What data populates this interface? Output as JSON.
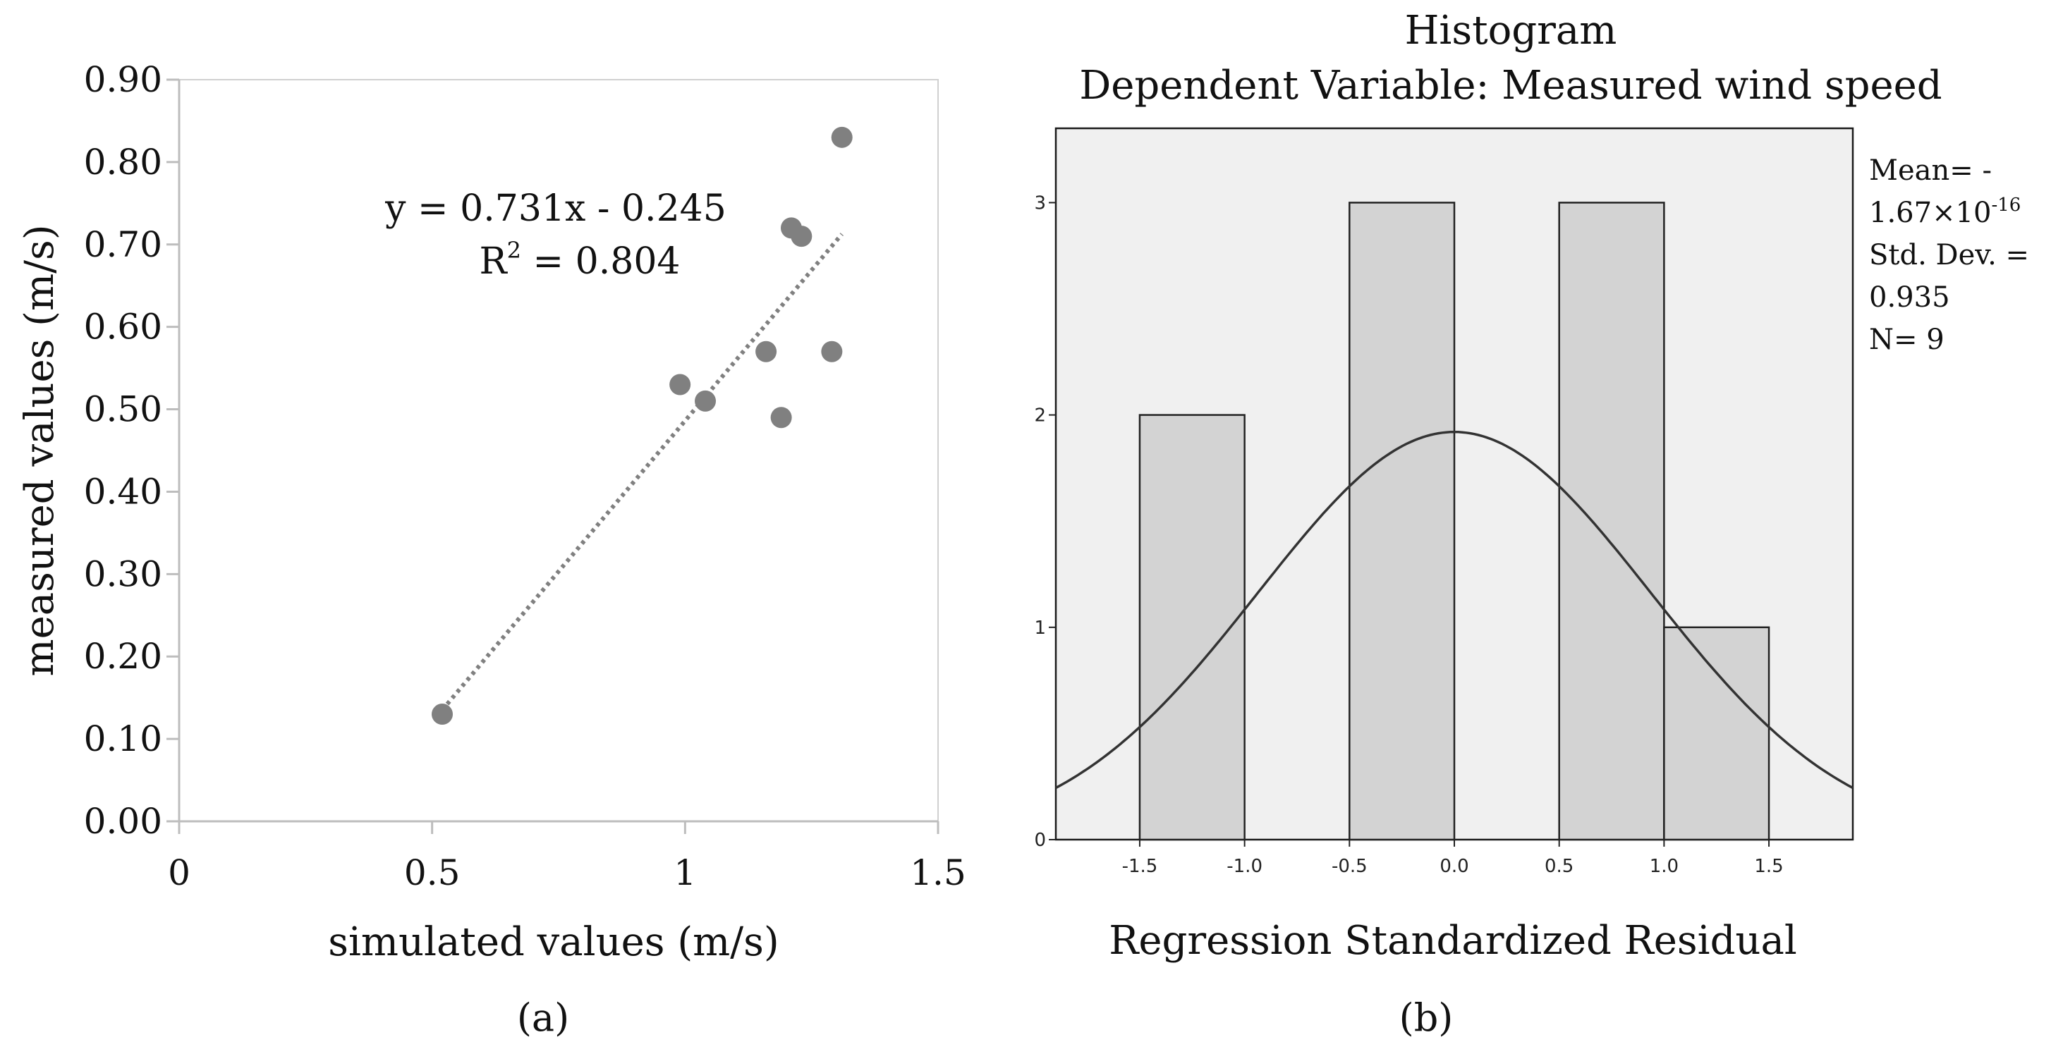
{
  "chart_data": [
    {
      "type": "scatter",
      "panel_label": "(a)",
      "xlabel": "simulated values (m/s)",
      "ylabel": "measured values (m/s)",
      "xlim": [
        0,
        1.5
      ],
      "ylim": [
        0,
        0.9
      ],
      "x_ticks": [
        0,
        0.5,
        1,
        1.5
      ],
      "x_tick_labels": [
        "0",
        "0.5",
        "1",
        "1.5"
      ],
      "y_ticks": [
        0,
        0.1,
        0.2,
        0.3,
        0.4,
        0.5,
        0.6,
        0.7,
        0.8,
        0.9
      ],
      "y_tick_labels": [
        "0.00",
        "0.10",
        "0.20",
        "0.30",
        "0.40",
        "0.50",
        "0.60",
        "0.70",
        "0.80",
        "0.90"
      ],
      "points": [
        {
          "x": 0.52,
          "y": 0.13
        },
        {
          "x": 0.99,
          "y": 0.53
        },
        {
          "x": 1.04,
          "y": 0.51
        },
        {
          "x": 1.16,
          "y": 0.57
        },
        {
          "x": 1.19,
          "y": 0.49
        },
        {
          "x": 1.21,
          "y": 0.72
        },
        {
          "x": 1.23,
          "y": 0.71
        },
        {
          "x": 1.29,
          "y": 0.57
        },
        {
          "x": 1.31,
          "y": 0.83
        }
      ],
      "trendline": {
        "slope": 0.731,
        "intercept": -0.245,
        "x_range": [
          0.52,
          1.31
        ],
        "style": "dotted"
      },
      "equation_text": "y = 0.731x - 0.245",
      "r2_prefix": "R",
      "r2_sup": "2",
      "r2_value": " = 0.804",
      "grid": false,
      "marker_color": "#808080"
    },
    {
      "type": "bar",
      "subtype": "histogram",
      "panel_label": "(b)",
      "title": "Histogram",
      "subtitle": "Dependent Variable: Measured wind speed",
      "xlabel": "Regression Standardized Residual",
      "ylabel": "",
      "xlim": [
        -1.9,
        1.9
      ],
      "ylim": [
        0,
        3.35
      ],
      "x_ticks": [
        -1.5,
        -1.0,
        -0.5,
        0.0,
        0.5,
        1.0,
        1.5
      ],
      "x_tick_labels": [
        "-1.5",
        "-1.0",
        "-0.5",
        "0.0",
        "0.5",
        "1.0",
        "1.5"
      ],
      "y_ticks": [
        0,
        1,
        2,
        3
      ],
      "y_tick_labels": [
        "0",
        "1",
        "2",
        "3"
      ],
      "bins": [
        {
          "from": -1.5,
          "to": -1.0,
          "count": 2
        },
        {
          "from": -1.0,
          "to": -0.5,
          "count": 0
        },
        {
          "from": -0.5,
          "to": 0.0,
          "count": 3
        },
        {
          "from": 0.0,
          "to": 0.5,
          "count": 0
        },
        {
          "from": 0.5,
          "to": 1.0,
          "count": 3
        },
        {
          "from": 1.0,
          "to": 1.5,
          "count": 1
        }
      ],
      "normal_curve": {
        "mean": 0,
        "sd": 0.935,
        "n": 9,
        "bin_width": 0.5
      },
      "stats": {
        "mean_label": "Mean= -",
        "mean_value": "1.67×10",
        "mean_exp": "-16",
        "sd_label": "Std. Dev. =",
        "sd_value": "0.935",
        "n_label": "N= 9"
      },
      "bar_color": "#d3d3d3",
      "plot_background": "#f0f0f0"
    }
  ]
}
